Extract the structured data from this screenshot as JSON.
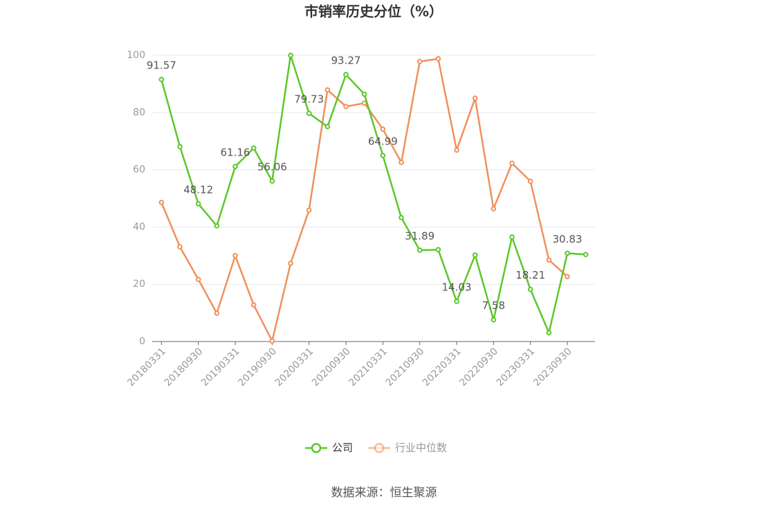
{
  "chart_data": {
    "type": "line",
    "title": "市销率历史分位（%）",
    "categories": [
      "20180331",
      null,
      "20180930",
      null,
      "20190331",
      null,
      "20190930",
      null,
      "20200331",
      null,
      "20200930",
      null,
      "20210331",
      null,
      "20210930",
      null,
      "20220331",
      null,
      "20220930",
      null,
      "20230331",
      null,
      "20230930",
      null
    ],
    "series": [
      {
        "name": "公司",
        "color": "#5cc72a",
        "values": [
          91.57,
          68.1,
          48.12,
          40.4,
          61.16,
          67.6,
          56.06,
          100,
          79.73,
          75.1,
          93.27,
          86.4,
          64.99,
          43.3,
          31.89,
          32.1,
          14.03,
          30.2,
          7.58,
          36.5,
          18.21,
          3.1,
          30.83,
          30.4
        ],
        "value_labels": [
          "91.57",
          null,
          "48.12",
          null,
          "61.16",
          null,
          "56.06",
          null,
          "79.73",
          null,
          "93.27",
          null,
          "64.99",
          null,
          "31.89",
          null,
          "14.03",
          null,
          "7.58",
          null,
          "18.21",
          null,
          "30.83",
          null
        ]
      },
      {
        "name": "行业中位数",
        "color": "#f0905a",
        "values": [
          48.6,
          33.1,
          21.7,
          9.9,
          30.0,
          12.8,
          0.2,
          27.3,
          45.9,
          87.9,
          82.1,
          83.3,
          74.2,
          62.6,
          97.8,
          98.8,
          66.9,
          85.0,
          46.4,
          62.3,
          56.0,
          28.5,
          22.7,
          null
        ]
      }
    ],
    "ylim": [
      0,
      100
    ],
    "yticks": [
      0,
      20,
      40,
      60,
      80,
      100
    ],
    "grid": true,
    "source": "数据来源：恒生聚源"
  }
}
